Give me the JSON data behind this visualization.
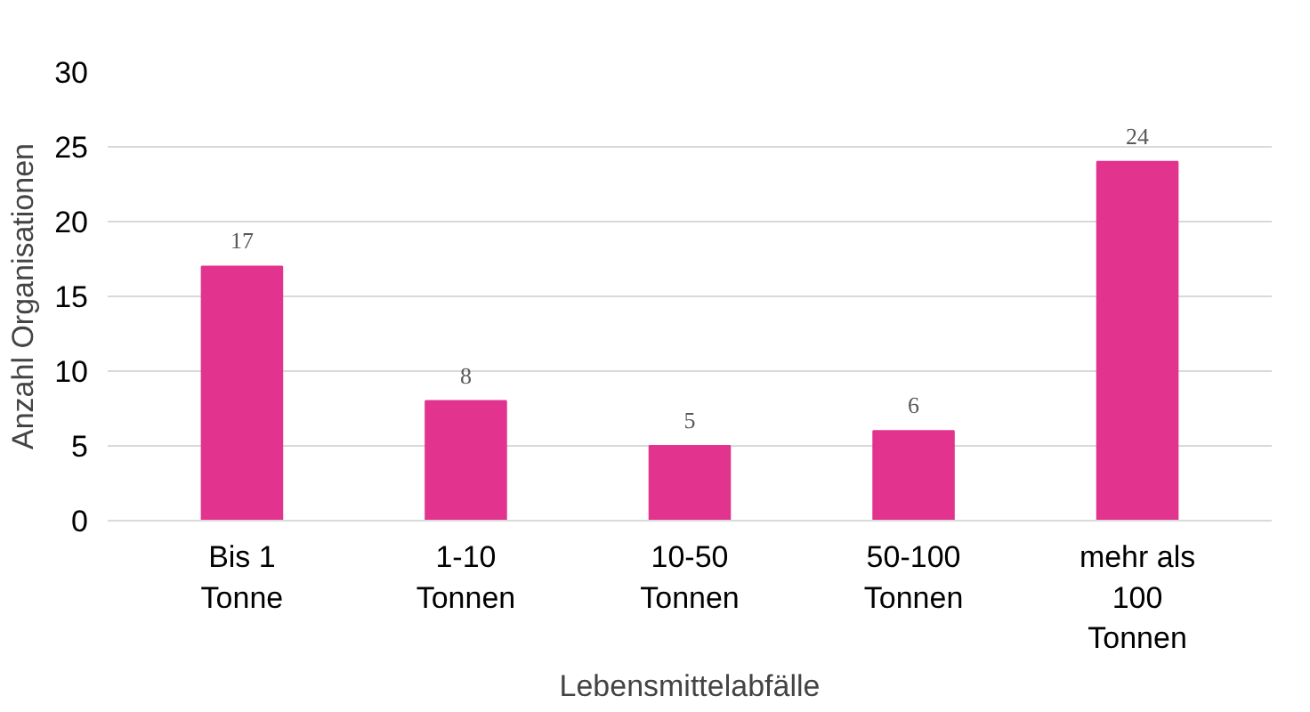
{
  "chart_data": {
    "type": "bar",
    "xlabel": "Lebensmittelabfälle",
    "ylabel": "Anzahl Organisationen",
    "categories": [
      "Bis 1 Tonne",
      "1-10 Tonnen",
      "10-50 Tonnen",
      "50-100 Tonnen",
      "mehr als 100 Tonnen"
    ],
    "values": [
      17,
      8,
      5,
      6,
      24
    ],
    "color": "#e2338f",
    "ylim": [
      0,
      30
    ],
    "yticks": [
      0,
      5,
      10,
      15,
      20,
      25,
      30
    ],
    "grid": "y",
    "data_labels": true
  }
}
